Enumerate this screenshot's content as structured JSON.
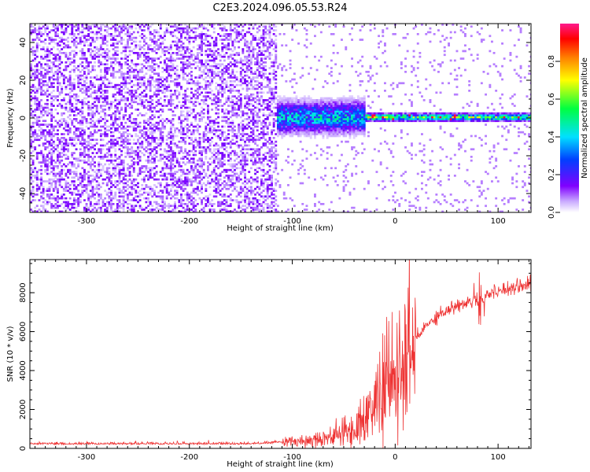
{
  "title": "C2E3.2024.096.05.53.R24",
  "chart_data": [
    {
      "type": "heatmap",
      "xlabel": "Height of straight line (km)",
      "ylabel": "Frequency (Hz)",
      "xlim": [
        -355,
        132
      ],
      "ylim": [
        -50,
        50
      ],
      "xticks": [
        -300,
        -200,
        -100,
        0,
        100
      ],
      "yticks": [
        -40,
        -20,
        0,
        20,
        40
      ],
      "colorbar": {
        "label": "Normalized spectral amplitude",
        "range": [
          0,
          1
        ],
        "ticks": [
          0.0,
          0.2,
          0.4,
          0.6,
          0.8
        ],
        "colormap": "rainbow"
      },
      "regions": [
        {
          "x": [
            -355,
            -115
          ],
          "freq_spread_hz": 50,
          "amplitude": 0.08
        },
        {
          "x": [
            -115,
            -30
          ],
          "freq_spread_hz": 8,
          "amplitude": 0.35
        },
        {
          "x": [
            -30,
            132
          ],
          "freq_spread_hz": 2,
          "amplitude": 0.5
        }
      ]
    },
    {
      "type": "line",
      "xlabel": "Height of straight line (km)",
      "ylabel": "SNR (10 * v/v)",
      "xlim": [
        -355,
        132
      ],
      "ylim": [
        0,
        9700
      ],
      "xticks": [
        -300,
        -200,
        -100,
        0,
        100
      ],
      "yticks": [
        0,
        2000,
        4000,
        6000,
        8000
      ],
      "series": [
        {
          "color": "#ee3333",
          "x": [
            -355,
            -300,
            -250,
            -200,
            -150,
            -120,
            -100,
            -80,
            -60,
            -50,
            -40,
            -30,
            -20,
            -10,
            0,
            10,
            20,
            30,
            40,
            50,
            60,
            70,
            80,
            90,
            100,
            110,
            120,
            132
          ],
          "y": [
            200,
            200,
            200,
            200,
            200,
            250,
            350,
            450,
            650,
            800,
            1000,
            1500,
            2300,
            3300,
            3500,
            4200,
            5600,
            6300,
            6800,
            7100,
            7300,
            7500,
            7700,
            7900,
            8100,
            8250,
            8350,
            8450
          ]
        }
      ]
    }
  ]
}
